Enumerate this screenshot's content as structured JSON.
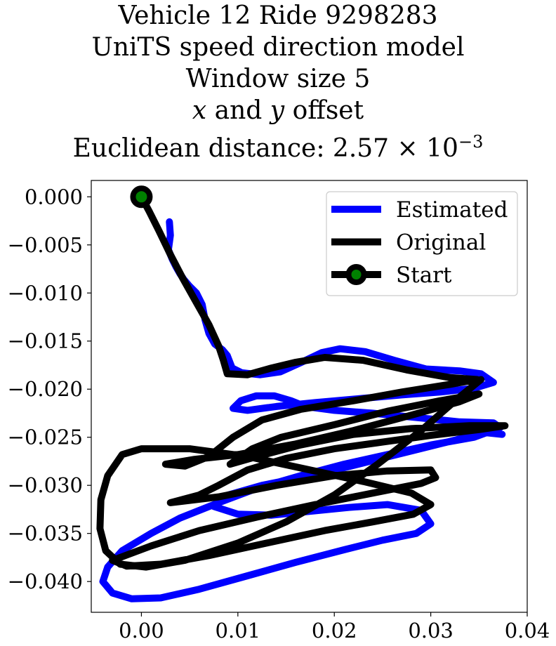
{
  "title_lines": [
    "Vehicle 12 Ride 9298283",
    "UniTS speed direction model",
    "Window size 5"
  ],
  "title_offset_line": {
    "x": "x",
    "mid": " and ",
    "y": "y",
    "rest": " offset"
  },
  "title_distance_line": {
    "prefix": "Euclidean distance: 2.57 × 10",
    "exponent": "−3"
  },
  "colors": {
    "estimated": "#0000ff",
    "original": "#000000",
    "start_marker": "#008000"
  },
  "chart_data": {
    "type": "line",
    "xlim": [
      -0.0052,
      0.04
    ],
    "ylim": [
      -0.0432,
      0.0017
    ],
    "xticks": [
      {
        "value": 0.0,
        "label": "0.00"
      },
      {
        "value": 0.01,
        "label": "0.01"
      },
      {
        "value": 0.02,
        "label": "0.02"
      },
      {
        "value": 0.03,
        "label": "0.03"
      },
      {
        "value": 0.04,
        "label": "0.04"
      }
    ],
    "yticks": [
      {
        "value": 0.0,
        "label": "0.000"
      },
      {
        "value": -0.005,
        "label": "−0.005"
      },
      {
        "value": -0.01,
        "label": "−0.010"
      },
      {
        "value": -0.015,
        "label": "−0.015"
      },
      {
        "value": -0.02,
        "label": "−0.020"
      },
      {
        "value": -0.025,
        "label": "−0.025"
      },
      {
        "value": -0.03,
        "label": "−0.030"
      },
      {
        "value": -0.035,
        "label": "−0.035"
      },
      {
        "value": -0.04,
        "label": "−0.040"
      }
    ],
    "grid": false,
    "legend_position": "top-right",
    "series": [
      {
        "name": "Estimated",
        "color": "#0000ff",
        "points": [
          [
            0.0029,
            -0.0026
          ],
          [
            0.003,
            -0.004
          ],
          [
            0.0028,
            -0.0055
          ],
          [
            0.0032,
            -0.0065
          ],
          [
            0.0036,
            -0.0073
          ],
          [
            0.004,
            -0.008
          ],
          [
            0.0044,
            -0.0086
          ],
          [
            0.005,
            -0.0093
          ],
          [
            0.0057,
            -0.01
          ],
          [
            0.0063,
            -0.0112
          ],
          [
            0.0066,
            -0.0128
          ],
          [
            0.007,
            -0.0142
          ],
          [
            0.0076,
            -0.0153
          ],
          [
            0.0084,
            -0.0159
          ],
          [
            0.0089,
            -0.0165
          ],
          [
            0.0094,
            -0.0178
          ],
          [
            0.0104,
            -0.0183
          ],
          [
            0.0123,
            -0.0185
          ],
          [
            0.0144,
            -0.0182
          ],
          [
            0.0166,
            -0.0172
          ],
          [
            0.0187,
            -0.0162
          ],
          [
            0.0206,
            -0.0158
          ],
          [
            0.0232,
            -0.0161
          ],
          [
            0.0262,
            -0.017
          ],
          [
            0.0295,
            -0.0179
          ],
          [
            0.033,
            -0.0181
          ],
          [
            0.0352,
            -0.0184
          ],
          [
            0.0365,
            -0.0193
          ],
          [
            0.0345,
            -0.0199
          ],
          [
            0.031,
            -0.0203
          ],
          [
            0.027,
            -0.0206
          ],
          [
            0.0225,
            -0.021
          ],
          [
            0.018,
            -0.0214
          ],
          [
            0.014,
            -0.0218
          ],
          [
            0.011,
            -0.0222
          ],
          [
            0.0095,
            -0.022
          ],
          [
            0.0103,
            -0.0212
          ],
          [
            0.0119,
            -0.0207
          ],
          [
            0.0138,
            -0.0207
          ],
          [
            0.0155,
            -0.0212
          ],
          [
            0.017,
            -0.0218
          ],
          [
            0.02,
            -0.0222
          ],
          [
            0.024,
            -0.0225
          ],
          [
            0.029,
            -0.023
          ],
          [
            0.033,
            -0.0234
          ],
          [
            0.0365,
            -0.0235
          ],
          [
            0.0372,
            -0.024
          ],
          [
            0.0345,
            -0.025
          ],
          [
            0.03,
            -0.0258
          ],
          [
            0.0255,
            -0.0268
          ],
          [
            0.021,
            -0.0278
          ],
          [
            0.0165,
            -0.029
          ],
          [
            0.012,
            -0.0303
          ],
          [
            0.008,
            -0.0318
          ],
          [
            0.004,
            -0.0334
          ],
          [
            0.001,
            -0.035
          ],
          [
            -0.002,
            -0.0368
          ],
          [
            -0.0035,
            -0.0385
          ],
          [
            -0.004,
            -0.04
          ],
          [
            -0.003,
            -0.0412
          ],
          [
            -0.001,
            -0.0418
          ],
          [
            0.002,
            -0.0417
          ],
          [
            0.006,
            -0.0408
          ],
          [
            0.011,
            -0.0394
          ],
          [
            0.016,
            -0.038
          ],
          [
            0.021,
            -0.0367
          ],
          [
            0.025,
            -0.0357
          ],
          [
            0.0285,
            -0.035
          ],
          [
            0.03,
            -0.034
          ],
          [
            0.029,
            -0.0326
          ],
          [
            0.0255,
            -0.032
          ],
          [
            0.0215,
            -0.0323
          ],
          [
            0.0175,
            -0.0327
          ],
          [
            0.0135,
            -0.0331
          ],
          [
            0.01,
            -0.033
          ],
          [
            0.0075,
            -0.0322
          ],
          [
            0.009,
            -0.031
          ],
          [
            0.0125,
            -0.03
          ],
          [
            0.0165,
            -0.0292
          ],
          [
            0.0205,
            -0.0283
          ],
          [
            0.0245,
            -0.0273
          ],
          [
            0.0285,
            -0.0263
          ],
          [
            0.0325,
            -0.0253
          ],
          [
            0.0355,
            -0.0245
          ],
          [
            0.0374,
            -0.0247
          ]
        ]
      },
      {
        "name": "Original",
        "color": "#000000",
        "points": [
          [
            0.0,
            0.0
          ],
          [
            0.0008,
            -0.0015
          ],
          [
            0.0018,
            -0.0035
          ],
          [
            0.003,
            -0.006
          ],
          [
            0.0043,
            -0.0085
          ],
          [
            0.0057,
            -0.011
          ],
          [
            0.007,
            -0.0133
          ],
          [
            0.008,
            -0.0155
          ],
          [
            0.0085,
            -0.017
          ],
          [
            0.0089,
            -0.0184
          ],
          [
            0.011,
            -0.0185
          ],
          [
            0.0135,
            -0.0178
          ],
          [
            0.016,
            -0.0172
          ],
          [
            0.019,
            -0.0167
          ],
          [
            0.023,
            -0.017
          ],
          [
            0.0275,
            -0.018
          ],
          [
            0.032,
            -0.0188
          ],
          [
            0.0348,
            -0.019
          ],
          [
            0.032,
            -0.0195
          ],
          [
            0.027,
            -0.0203
          ],
          [
            0.022,
            -0.0212
          ],
          [
            0.0165,
            -0.0221
          ],
          [
            0.0125,
            -0.0232
          ],
          [
            0.0095,
            -0.025
          ],
          [
            0.007,
            -0.027
          ],
          [
            0.0045,
            -0.028
          ],
          [
            0.0025,
            -0.0278
          ],
          [
            0.0055,
            -0.0273
          ],
          [
            0.01,
            -0.0268
          ],
          [
            0.016,
            -0.0257
          ],
          [
            0.022,
            -0.0243
          ],
          [
            0.028,
            -0.0227
          ],
          [
            0.033,
            -0.0213
          ],
          [
            0.035,
            -0.0205
          ],
          [
            0.031,
            -0.0212
          ],
          [
            0.0255,
            -0.0223
          ],
          [
            0.02,
            -0.0237
          ],
          [
            0.0145,
            -0.025
          ],
          [
            0.0115,
            -0.0262
          ],
          [
            0.0092,
            -0.0278
          ],
          [
            0.012,
            -0.027
          ],
          [
            0.0165,
            -0.0258
          ],
          [
            0.022,
            -0.0247
          ],
          [
            0.028,
            -0.0241
          ],
          [
            0.034,
            -0.0238
          ],
          [
            0.0377,
            -0.0238
          ],
          [
            0.035,
            -0.0242
          ],
          [
            0.03,
            -0.0248
          ],
          [
            0.025,
            -0.0255
          ],
          [
            0.02,
            -0.0262
          ],
          [
            0.015,
            -0.0272
          ],
          [
            0.011,
            -0.0284
          ],
          [
            0.008,
            -0.03
          ],
          [
            0.006,
            -0.031
          ],
          [
            0.003,
            -0.0318
          ],
          [
            0.008,
            -0.0312
          ],
          [
            0.014,
            -0.03
          ],
          [
            0.02,
            -0.029
          ],
          [
            0.0255,
            -0.0285
          ],
          [
            0.03,
            -0.0284
          ],
          [
            0.0305,
            -0.0292
          ],
          [
            0.029,
            -0.0298
          ],
          [
            0.024,
            -0.0308
          ],
          [
            0.018,
            -0.032
          ],
          [
            0.012,
            -0.0333
          ],
          [
            0.006,
            -0.0347
          ],
          [
            0.001,
            -0.0363
          ],
          [
            -0.003,
            -0.0378
          ],
          [
            -0.0015,
            -0.0384
          ],
          [
            0.002,
            -0.0382
          ],
          [
            0.007,
            -0.0373
          ],
          [
            0.013,
            -0.036
          ],
          [
            0.019,
            -0.0347
          ],
          [
            0.024,
            -0.0338
          ],
          [
            0.0282,
            -0.033
          ],
          [
            0.03,
            -0.032
          ],
          [
            0.028,
            -0.0308
          ],
          [
            0.023,
            -0.0296
          ],
          [
            0.017,
            -0.0283
          ],
          [
            0.011,
            -0.027
          ],
          [
            0.005,
            -0.0262
          ],
          [
            0.0,
            -0.0262
          ],
          [
            -0.002,
            -0.0268
          ],
          [
            -0.0035,
            -0.029
          ],
          [
            -0.0042,
            -0.0315
          ],
          [
            -0.0043,
            -0.0345
          ],
          [
            -0.0037,
            -0.0368
          ],
          [
            -0.0022,
            -0.0382
          ],
          [
            0.0005,
            -0.0385
          ],
          [
            0.0045,
            -0.0378
          ],
          [
            0.01,
            -0.036
          ],
          [
            0.015,
            -0.0338
          ],
          [
            0.02,
            -0.031
          ],
          [
            0.0245,
            -0.0278
          ],
          [
            0.029,
            -0.0243
          ],
          [
            0.033,
            -0.0208
          ],
          [
            0.0352,
            -0.019
          ]
        ]
      }
    ],
    "start": {
      "x": 0.0,
      "y": 0.0
    },
    "legend": [
      {
        "label": "Estimated",
        "kind": "line",
        "color": "#0000ff"
      },
      {
        "label": "Original",
        "kind": "line",
        "color": "#000000"
      },
      {
        "label": "Start",
        "kind": "marker",
        "color": "#000000",
        "marker_color": "#008000"
      }
    ]
  }
}
